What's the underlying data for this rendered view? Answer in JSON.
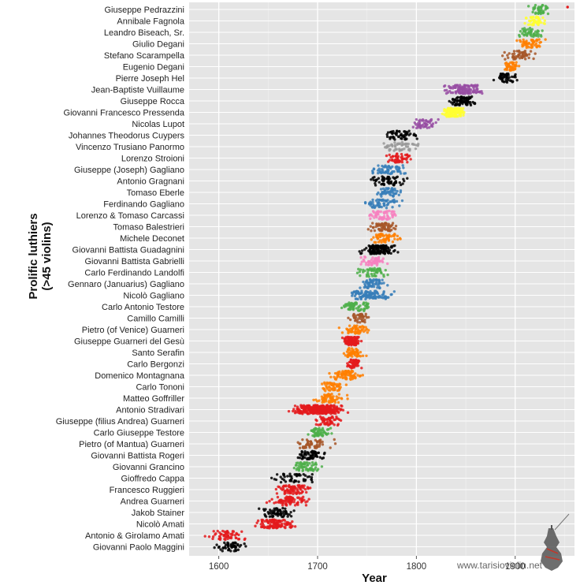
{
  "chart_data": {
    "type": "scatter",
    "title": "",
    "xlabel": "Year",
    "ylabel": [
      "Prolific luthiers",
      "(>45 violins)"
    ],
    "xlim": [
      1570,
      1960
    ],
    "x_ticks": [
      1600,
      1700,
      1800,
      1900
    ],
    "x_tick_labels": [
      "1600",
      "1700",
      "1800",
      "1900"
    ],
    "grid": true,
    "background": "#e5e5e5",
    "watermark": "www.tarisioviolin.net",
    "luthiers": [
      {
        "name": "Giuseppe Pedrazzini",
        "start": 1910,
        "end": 1940,
        "count": 45,
        "color": "#4daf4a",
        "outliers": [
          1953
        ]
      },
      {
        "name": "Annibale Fagnola",
        "start": 1905,
        "end": 1935,
        "count": 50,
        "color": "#ffff33"
      },
      {
        "name": "Leandro Biseach, Sr.",
        "start": 1898,
        "end": 1935,
        "count": 50,
        "color": "#4daf4a"
      },
      {
        "name": "Giulio Degani",
        "start": 1897,
        "end": 1932,
        "count": 50,
        "color": "#ff7f00"
      },
      {
        "name": "Stefano Scarampella",
        "start": 1885,
        "end": 1925,
        "count": 55,
        "color": "#a65628"
      },
      {
        "name": "Eugenio Degani",
        "start": 1887,
        "end": 1905,
        "count": 45,
        "color": "#ff7f00"
      },
      {
        "name": "Pierre Joseph Hel",
        "start": 1876,
        "end": 1905,
        "count": 50,
        "color": "#000000"
      },
      {
        "name": "Jean-Baptiste Vuillaume",
        "start": 1820,
        "end": 1875,
        "count": 120,
        "color": "#984ea3"
      },
      {
        "name": "Giuseppe Rocca",
        "start": 1830,
        "end": 1865,
        "count": 80,
        "color": "#000000"
      },
      {
        "name": "Giovanni Francesco Pressenda",
        "start": 1820,
        "end": 1852,
        "count": 120,
        "color": "#ffff33"
      },
      {
        "name": "Nicolas Lupot",
        "start": 1790,
        "end": 1825,
        "count": 50,
        "color": "#984ea3"
      },
      {
        "name": "Johannes Theodorus Cuypers",
        "start": 1760,
        "end": 1808,
        "count": 55,
        "color": "#000000"
      },
      {
        "name": "Vincenzo Trusiano Panormo",
        "start": 1758,
        "end": 1810,
        "count": 50,
        "color": "#999999"
      },
      {
        "name": "Lorenzo Stroioni",
        "start": 1765,
        "end": 1800,
        "count": 50,
        "color": "#e41a1c"
      },
      {
        "name": "Giuseppe (Joseph) Gagliano",
        "start": 1745,
        "end": 1800,
        "count": 60,
        "color": "#377eb8"
      },
      {
        "name": "Antonio Gragnani",
        "start": 1750,
        "end": 1795,
        "count": 60,
        "color": "#000000"
      },
      {
        "name": "Tomaso Eberle",
        "start": 1755,
        "end": 1790,
        "count": 50,
        "color": "#377eb8"
      },
      {
        "name": "Ferdinando Gagliano",
        "start": 1740,
        "end": 1790,
        "count": 60,
        "color": "#377eb8"
      },
      {
        "name": "Lorenzo & Tomaso Carcassi",
        "start": 1740,
        "end": 1790,
        "count": 60,
        "color": "#f781bf"
      },
      {
        "name": "Tomaso Balestrieri",
        "start": 1745,
        "end": 1788,
        "count": 60,
        "color": "#a65628"
      },
      {
        "name": "Michele Deconet",
        "start": 1745,
        "end": 1792,
        "count": 55,
        "color": "#ff7f00"
      },
      {
        "name": "Giovanni Battista Guadagnini",
        "start": 1740,
        "end": 1786,
        "count": 130,
        "color": "#000000"
      },
      {
        "name": "Giovanni Battista Gabrielli",
        "start": 1740,
        "end": 1772,
        "count": 55,
        "color": "#f781bf"
      },
      {
        "name": "Carlo Ferdinando Landolfi",
        "start": 1736,
        "end": 1776,
        "count": 50,
        "color": "#4daf4a"
      },
      {
        "name": "Gennaro (Januarius) Gagliano",
        "start": 1733,
        "end": 1778,
        "count": 60,
        "color": "#377eb8"
      },
      {
        "name": "Nicolò Gagliano",
        "start": 1725,
        "end": 1782,
        "count": 110,
        "color": "#377eb8"
      },
      {
        "name": "Carlo Antonio Testore",
        "start": 1718,
        "end": 1762,
        "count": 70,
        "color": "#4daf4a"
      },
      {
        "name": "Camillo Camilli",
        "start": 1730,
        "end": 1755,
        "count": 45,
        "color": "#a65628"
      },
      {
        "name": "Pietro (of  Venice) Guarneri",
        "start": 1718,
        "end": 1760,
        "count": 60,
        "color": "#ff7f00"
      },
      {
        "name": "Giuseppe Guarneri del Gesù",
        "start": 1722,
        "end": 1745,
        "count": 100,
        "color": "#e41a1c"
      },
      {
        "name": "Santo Serafin",
        "start": 1722,
        "end": 1752,
        "count": 55,
        "color": "#ff7f00"
      },
      {
        "name": "Carlo Bergonzi",
        "start": 1725,
        "end": 1747,
        "count": 50,
        "color": "#e41a1c"
      },
      {
        "name": "Domenico Montagnana",
        "start": 1710,
        "end": 1750,
        "count": 75,
        "color": "#ff7f00"
      },
      {
        "name": "Carlo Tononi",
        "start": 1698,
        "end": 1732,
        "count": 50,
        "color": "#ff7f00"
      },
      {
        "name": "Matteo Goffriller",
        "start": 1690,
        "end": 1735,
        "count": 60,
        "color": "#ff7f00"
      },
      {
        "name": "Antonio Stradivari",
        "start": 1666,
        "end": 1737,
        "count": 320,
        "color": "#e41a1c"
      },
      {
        "name": "Giuseppe (filius Andrea) Guarneri",
        "start": 1690,
        "end": 1730,
        "count": 55,
        "color": "#e41a1c"
      },
      {
        "name": "Carlo Giuseppe Testore",
        "start": 1687,
        "end": 1718,
        "count": 55,
        "color": "#4daf4a"
      },
      {
        "name": "Pietro (of Mantua) Guarneri",
        "start": 1670,
        "end": 1720,
        "count": 55,
        "color": "#a65628"
      },
      {
        "name": "Giovanni Battista Rogeri",
        "start": 1670,
        "end": 1715,
        "count": 60,
        "color": "#000000"
      },
      {
        "name": "Giovanni Grancino",
        "start": 1670,
        "end": 1710,
        "count": 60,
        "color": "#4daf4a"
      },
      {
        "name": "Gioffredo Cappa",
        "start": 1640,
        "end": 1710,
        "count": 50,
        "color": "#000000"
      },
      {
        "name": "Francesco Ruggieri",
        "start": 1650,
        "end": 1700,
        "count": 80,
        "color": "#e41a1c"
      },
      {
        "name": "Andrea Guarneri",
        "start": 1645,
        "end": 1698,
        "count": 80,
        "color": "#e41a1c"
      },
      {
        "name": "Jakob Stainer",
        "start": 1638,
        "end": 1682,
        "count": 60,
        "color": "#000000"
      },
      {
        "name": "Nicolò Amati",
        "start": 1630,
        "end": 1684,
        "count": 110,
        "color": "#e41a1c"
      },
      {
        "name": "Antonio & Girolamo Amati",
        "start": 1585,
        "end": 1630,
        "count": 60,
        "color": "#e41a1c"
      },
      {
        "name": "Giovanni Paolo Maggini",
        "start": 1592,
        "end": 1632,
        "count": 50,
        "color": "#000000"
      }
    ]
  }
}
